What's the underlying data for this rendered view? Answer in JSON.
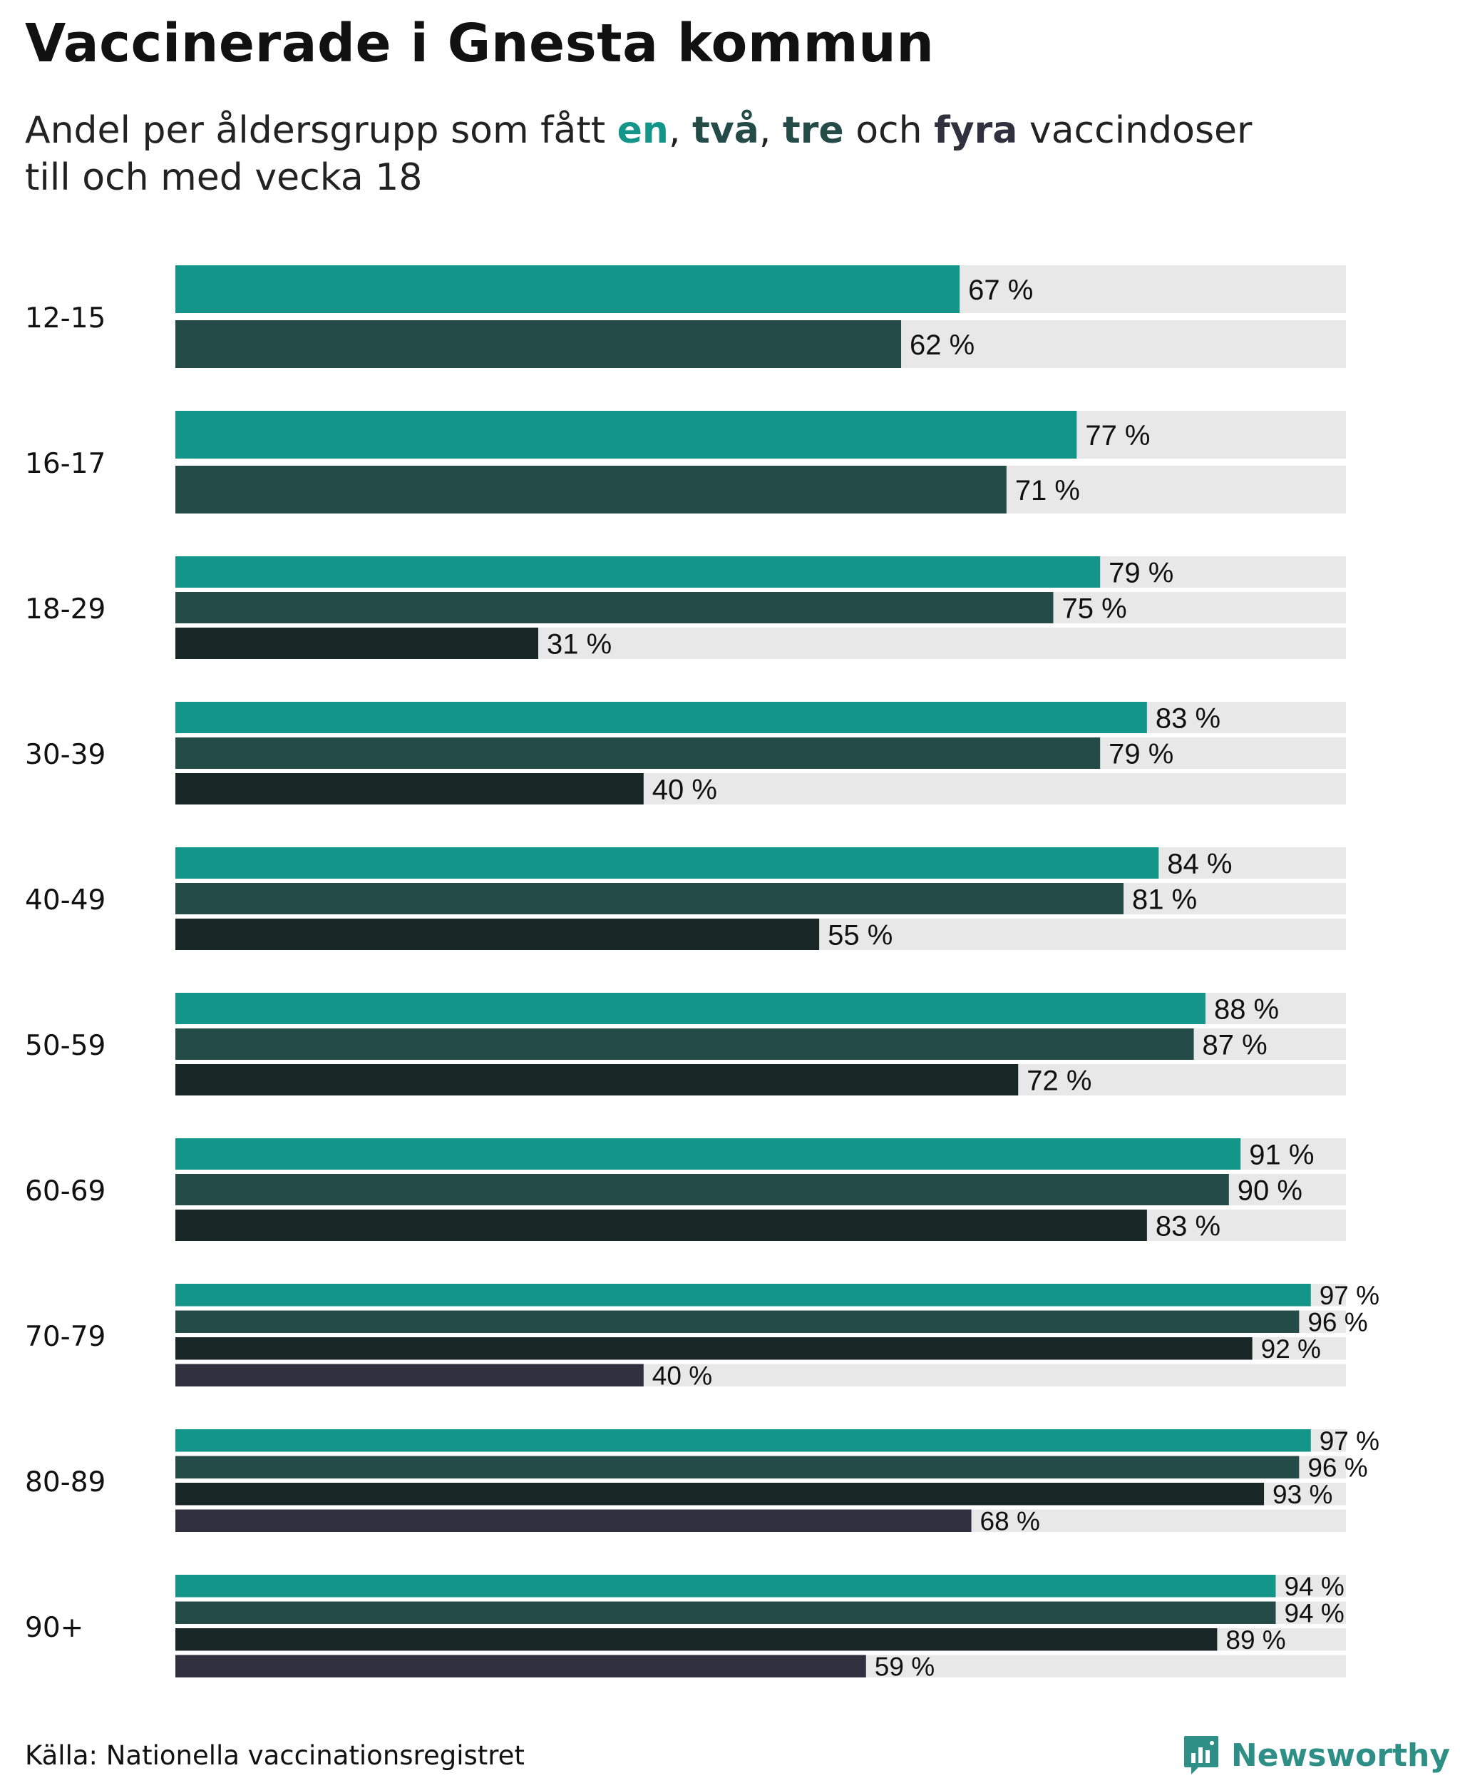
{
  "title": "Vaccinerade i Gnesta kommun",
  "subtitle": {
    "prefix": "Andel per åldersgrupp som fått ",
    "w1": "en",
    "sep1": ", ",
    "w2": "två",
    "sep2": ", ",
    "w3": "tre",
    "mid": " och ",
    "w4": "fyra",
    "suffix": " vaccindoser",
    "line2": "till och med vecka 18"
  },
  "footer": {
    "source": "Källa: Nationella vaccinationsregistret",
    "brand": "Newsworthy",
    "brand_icon": "newsworthy-logo-icon"
  },
  "colors": {
    "dose1": "#14958a",
    "dose2": "#254b48",
    "dose3": "#182725",
    "dose4": "#30303e",
    "track": "#e8e8e8",
    "brand": "#2d8f85"
  },
  "chart_data": {
    "type": "bar",
    "orientation": "horizontal",
    "title": "Vaccinerade i Gnesta kommun",
    "xlim": [
      0,
      100
    ],
    "unit": "%",
    "legend_in_subtitle": true,
    "series_names": [
      "en dos",
      "två doser",
      "tre doser",
      "fyra doser"
    ],
    "groups": [
      {
        "label": "12-15",
        "values": [
          67,
          62
        ]
      },
      {
        "label": "16-17",
        "values": [
          77,
          71
        ]
      },
      {
        "label": "18-29",
        "values": [
          79,
          75,
          31
        ]
      },
      {
        "label": "30-39",
        "values": [
          83,
          79,
          40
        ]
      },
      {
        "label": "40-49",
        "values": [
          84,
          81,
          55
        ]
      },
      {
        "label": "50-59",
        "values": [
          88,
          87,
          72
        ]
      },
      {
        "label": "60-69",
        "values": [
          91,
          90,
          83
        ]
      },
      {
        "label": "70-79",
        "values": [
          97,
          96,
          92,
          40
        ]
      },
      {
        "label": "80-89",
        "values": [
          97,
          96,
          93,
          68
        ]
      },
      {
        "label": "90+",
        "values": [
          94,
          94,
          89,
          59
        ]
      }
    ]
  }
}
